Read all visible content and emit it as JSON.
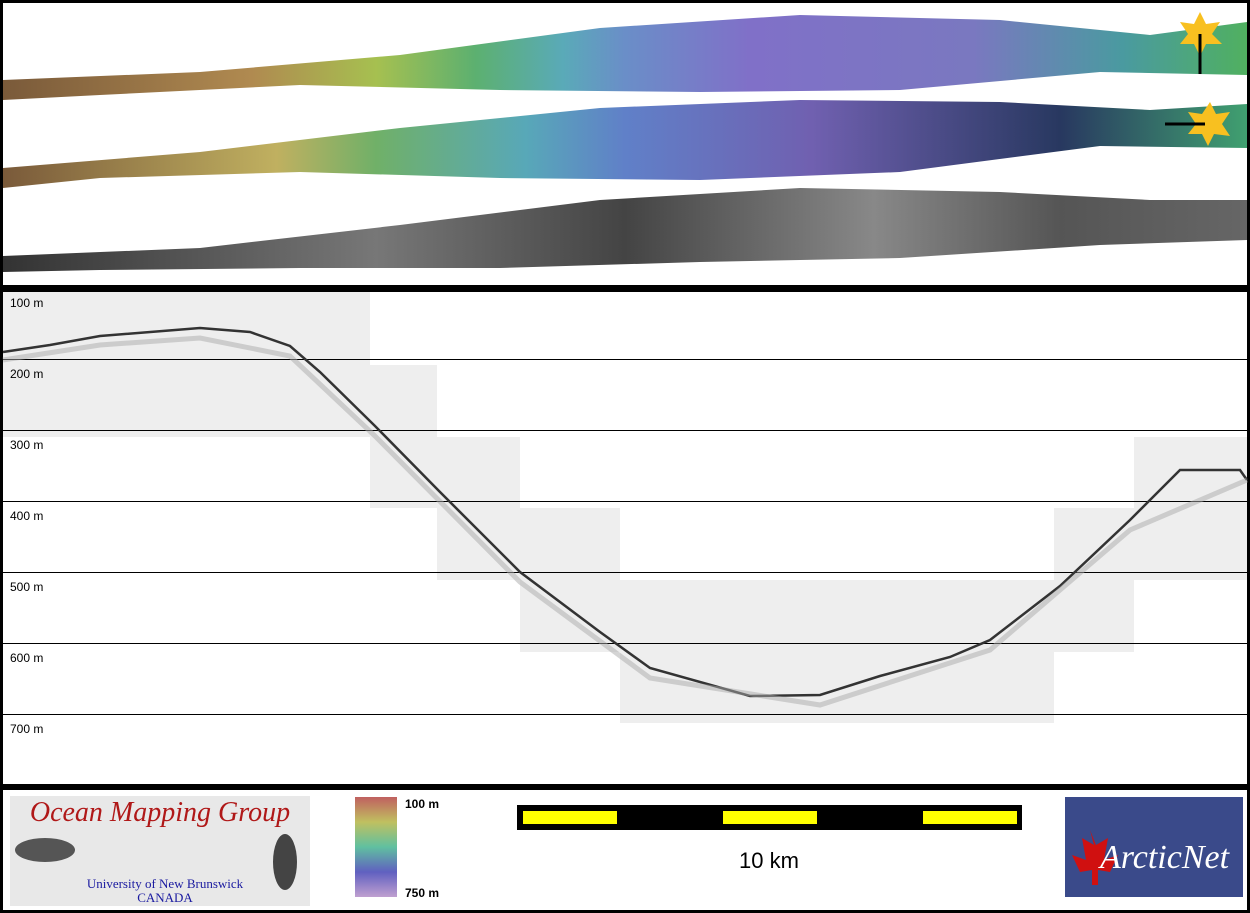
{
  "depth_labels": [
    "100 m",
    "200 m",
    "300 m",
    "400 m",
    "500 m",
    "600 m",
    "700 m"
  ],
  "colorbar": {
    "top": "100 m",
    "bottom": "750 m"
  },
  "scale_bar": {
    "label": "10 km"
  },
  "logo_left": {
    "title": "Ocean Mapping Group",
    "line1": "University of New Brunswick",
    "line2": "CANADA"
  },
  "logo_right": {
    "title": "ArcticNet"
  }
}
